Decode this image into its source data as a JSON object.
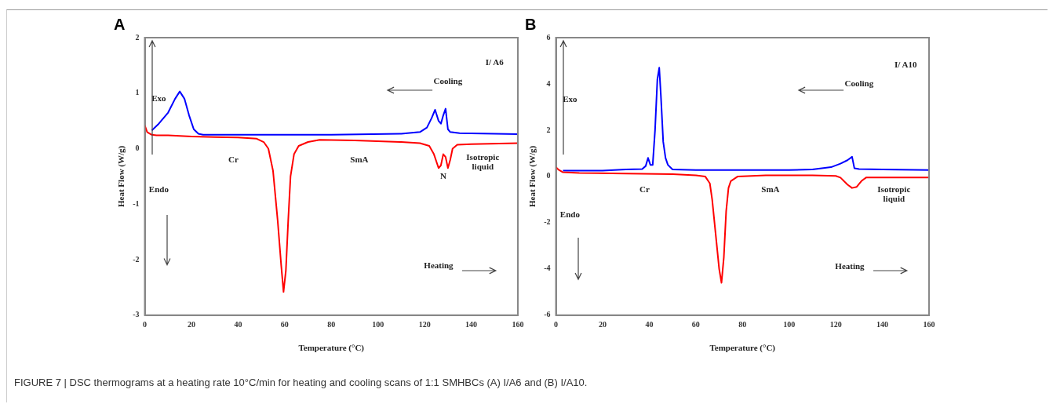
{
  "chart_data": [
    {
      "type": "line",
      "title": "A",
      "xlabel": "Temperature (°C)",
      "ylabel": "Heat Flow (W/g)",
      "xlim": [
        0,
        160
      ],
      "xticks": [
        0,
        20,
        40,
        60,
        80,
        100,
        120,
        140,
        160
      ],
      "ylim": [
        -3,
        2
      ],
      "yticks": [
        -3,
        -2,
        -1,
        0,
        1,
        2
      ],
      "grid": false,
      "legend": false,
      "marker": "none",
      "line_style": "solid",
      "series": [
        {
          "color": "#ff0000",
          "x": [
            0,
            1,
            3,
            5,
            10,
            20,
            30,
            40,
            48,
            51,
            53,
            55,
            57,
            58.5,
            59.5,
            60.5,
            61.5,
            62.5,
            64,
            66,
            70,
            75,
            90,
            110,
            118,
            122,
            124,
            126,
            127,
            128,
            129,
            130,
            131,
            132,
            134,
            140,
            160
          ],
          "values": [
            0.42,
            0.3,
            0.25,
            0.24,
            0.24,
            0.22,
            0.21,
            0.2,
            0.18,
            0.12,
            0,
            -0.4,
            -1.3,
            -2.1,
            -2.58,
            -2.2,
            -1.3,
            -0.5,
            -0.1,
            0.05,
            0.12,
            0.16,
            0.15,
            0.12,
            0.1,
            0.05,
            -0.1,
            -0.35,
            -0.3,
            -0.1,
            -0.15,
            -0.35,
            -0.2,
            0,
            0.07,
            0.08,
            0.1
          ]
        },
        {
          "color": "#0000ff",
          "x": [
            3,
            6,
            10,
            13,
            15,
            17,
            19,
            21,
            23,
            25,
            40,
            80,
            110,
            118,
            121,
            123,
            124.5,
            126,
            127,
            128,
            129,
            130,
            131,
            135,
            160
          ],
          "values": [
            0.33,
            0.45,
            0.65,
            0.9,
            1.03,
            0.9,
            0.6,
            0.35,
            0.27,
            0.25,
            0.25,
            0.25,
            0.27,
            0.3,
            0.38,
            0.55,
            0.7,
            0.5,
            0.45,
            0.6,
            0.72,
            0.35,
            0.3,
            0.28,
            0.26
          ]
        }
      ],
      "annotations": [
        "I/ A6",
        "Cooling",
        "Exo",
        "Endo",
        "Cr",
        "SmA",
        "N",
        "Isotropic liquid",
        "Heating",
        "FIGURE 7 | DSC thermograms at a heating rate 10°C/min for heating and cooling scans of 1:1 SMHBCs (A) I/A6 and (B) I/A10."
      ]
    },
    {
      "type": "line",
      "title": "B",
      "xlabel": "Temperature (°C)",
      "ylabel": "Heat Flow (W/g)",
      "xlim": [
        0,
        160
      ],
      "xticks": [
        0,
        20,
        40,
        60,
        80,
        100,
        120,
        140,
        160
      ],
      "ylim": [
        -6,
        6
      ],
      "yticks": [
        -6,
        -4,
        -2,
        0,
        2,
        4,
        6
      ],
      "grid": false,
      "legend": false,
      "marker": "none",
      "line_style": "solid",
      "series": [
        {
          "color": "#ff0000",
          "x": [
            0,
            1,
            3,
            10,
            30,
            50,
            60,
            64,
            66,
            67,
            68.5,
            70,
            71,
            72,
            73,
            74,
            75,
            78,
            90,
            110,
            120,
            122,
            125,
            127,
            129,
            131,
            133,
            140,
            160
          ],
          "values": [
            0.4,
            0.3,
            0.18,
            0.15,
            0.12,
            0.1,
            0.05,
            0,
            -0.3,
            -1,
            -2.5,
            -4,
            -4.6,
            -3.5,
            -1.5,
            -0.5,
            -0.2,
            0,
            0.05,
            0.05,
            0.02,
            -0.05,
            -0.35,
            -0.5,
            -0.45,
            -0.2,
            -0.05,
            -0.05,
            -0.05
          ]
        },
        {
          "color": "#0000ff",
          "x": [
            3,
            20,
            30,
            37,
            38.5,
            39.5,
            40.5,
            41.5,
            42.5,
            43.5,
            44.3,
            45,
            46,
            47,
            48,
            50,
            60,
            100,
            110,
            118,
            122,
            125,
            127,
            128,
            130,
            140,
            160
          ],
          "values": [
            0.25,
            0.25,
            0.3,
            0.32,
            0.45,
            0.8,
            0.5,
            0.5,
            2,
            4.2,
            4.7,
            3.5,
            1.5,
            0.8,
            0.5,
            0.3,
            0.28,
            0.28,
            0.3,
            0.4,
            0.55,
            0.7,
            0.85,
            0.35,
            0.32,
            0.3,
            0.28
          ]
        }
      ],
      "annotations": [
        "I/ A10",
        "Cooling",
        "Exo",
        "Endo",
        "Cr",
        "SmA",
        "Isotropic liquid",
        "Heating"
      ]
    }
  ]
}
